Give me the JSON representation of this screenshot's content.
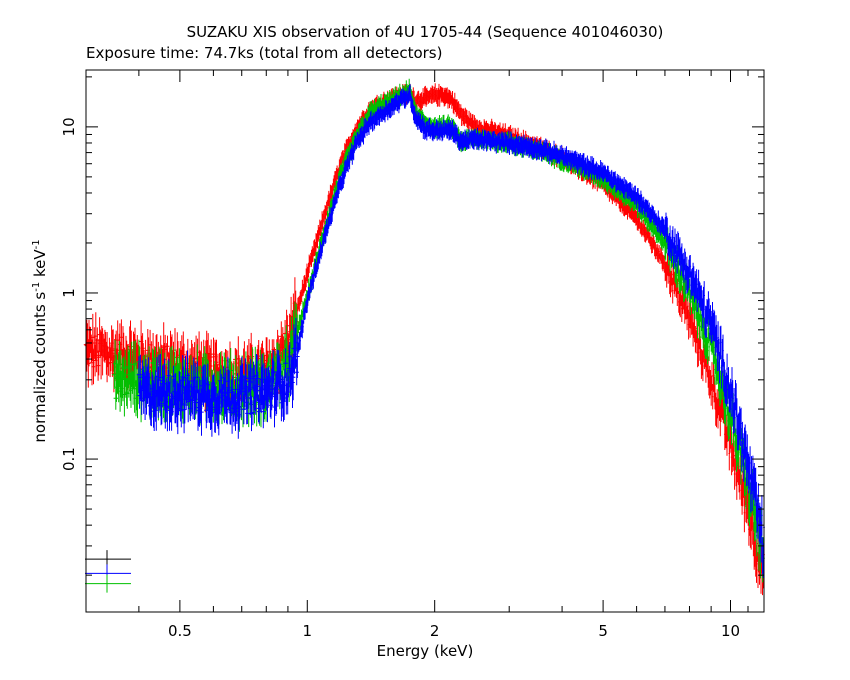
{
  "chart_data": {
    "type": "scatter",
    "title": "SUZAKU XIS observation of 4U 1705-44 (Sequence 401046030)",
    "subtitle": "Exposure time: 74.7ks (total from all detectors)",
    "xlabel": "Energy (keV)",
    "ylabel": {
      "main": "normalized counts s",
      "sup1": "-1",
      "mid": " keV",
      "sup2": "-1"
    },
    "xscale": "log",
    "yscale": "log",
    "xlim": [
      0.3,
      12.0
    ],
    "ylim": [
      0.012,
      22
    ],
    "x_ticks": [
      {
        "value": 0.5,
        "label": "0.5"
      },
      {
        "value": 1,
        "label": "1"
      },
      {
        "value": 2,
        "label": "2"
      },
      {
        "value": 5,
        "label": "5"
      },
      {
        "value": 10,
        "label": "10"
      }
    ],
    "y_ticks": [
      {
        "value": 0.1,
        "label": "0.1"
      },
      {
        "value": 1,
        "label": "1"
      },
      {
        "value": 10,
        "label": "10"
      }
    ],
    "grid": false,
    "legend": "none",
    "series": [
      {
        "color": "#ff0000",
        "x": [
          0.3,
          0.4,
          0.5,
          0.6,
          0.7,
          0.8,
          0.9,
          1.0,
          1.1,
          1.2,
          1.3,
          1.4,
          1.5,
          1.6,
          1.7,
          1.75,
          1.8,
          1.9,
          2.0,
          2.1,
          2.2,
          2.3,
          2.5,
          3.0,
          3.5,
          4.0,
          5.0,
          6.0,
          7.0,
          8.0,
          9.0,
          10.0,
          11.0,
          12.0
        ],
        "y": [
          0.45,
          0.4,
          0.36,
          0.33,
          0.32,
          0.33,
          0.5,
          1.3,
          3.0,
          6.0,
          9.5,
          12.5,
          14.0,
          15.0,
          15.5,
          15.8,
          14.5,
          14.8,
          15.5,
          15.6,
          14.5,
          12.0,
          10.0,
          8.8,
          7.6,
          6.5,
          4.5,
          2.8,
          1.5,
          0.7,
          0.3,
          0.12,
          0.05,
          0.02
        ]
      },
      {
        "color": "#00c000",
        "x": [
          0.35,
          0.4,
          0.5,
          0.6,
          0.7,
          0.8,
          0.9,
          1.0,
          1.1,
          1.2,
          1.3,
          1.4,
          1.5,
          1.6,
          1.7,
          1.75,
          1.8,
          1.9,
          2.0,
          2.2,
          2.3,
          2.5,
          3.0,
          3.5,
          4.0,
          5.0,
          6.0,
          7.0,
          8.0,
          9.0,
          10.0,
          11.0,
          12.0
        ],
        "y": [
          0.3,
          0.3,
          0.28,
          0.27,
          0.26,
          0.28,
          0.36,
          0.95,
          2.4,
          5.2,
          8.5,
          12.0,
          13.5,
          14.5,
          16.0,
          16.5,
          12.0,
          10.5,
          10.0,
          10.0,
          8.2,
          8.5,
          8.0,
          7.2,
          6.4,
          4.9,
          3.4,
          2.0,
          1.0,
          0.48,
          0.18,
          0.07,
          0.025
        ]
      },
      {
        "color": "#0000ff",
        "x": [
          0.4,
          0.5,
          0.6,
          0.7,
          0.8,
          0.9,
          0.95,
          1.0,
          1.1,
          1.2,
          1.3,
          1.4,
          1.5,
          1.6,
          1.7,
          1.75,
          1.8,
          1.9,
          2.0,
          2.2,
          2.3,
          2.5,
          3.0,
          3.5,
          4.0,
          5.0,
          6.0,
          7.0,
          8.0,
          9.0,
          10.0,
          11.0,
          12.0
        ],
        "y": [
          0.25,
          0.25,
          0.24,
          0.24,
          0.25,
          0.3,
          0.45,
          0.9,
          2.2,
          4.6,
          7.8,
          10.5,
          12.0,
          13.5,
          15.0,
          15.5,
          11.5,
          9.7,
          9.5,
          9.5,
          8.2,
          8.4,
          8.0,
          7.4,
          6.7,
          5.3,
          3.8,
          2.4,
          1.3,
          0.65,
          0.26,
          0.09,
          0.03
        ]
      }
    ],
    "legend_crosses": [
      {
        "color": "#000000",
        "y": 0.025
      },
      {
        "color": "#0000ff",
        "y": 0.0205
      },
      {
        "color": "#00c000",
        "y": 0.0178
      }
    ]
  }
}
